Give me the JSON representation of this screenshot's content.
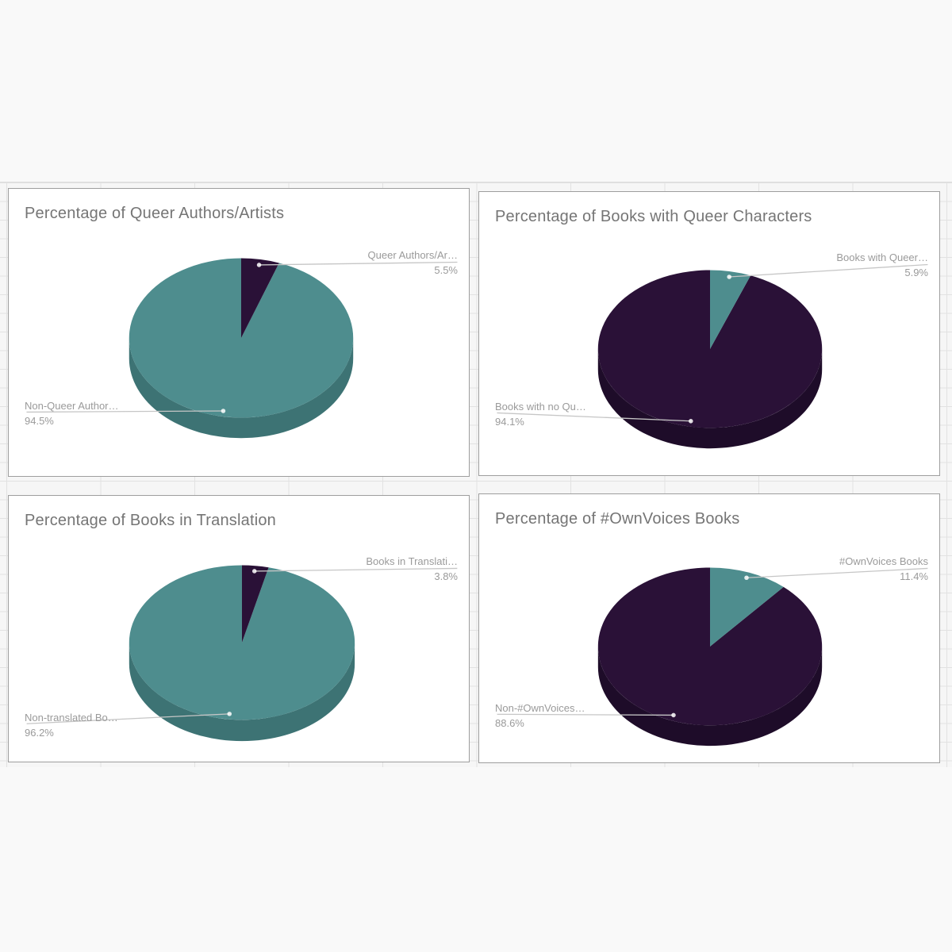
{
  "page": {
    "background": "#f9f9f9"
  },
  "colors": {
    "teal": "#4e8d8e",
    "teal_side": "#3d7374",
    "purple": "#2a1137",
    "purple_side": "#1e0c29",
    "title_text": "#757575",
    "label_text": "#9a9a9a",
    "leader_line": "#c6c6c6",
    "card_border": "#9e9e9e",
    "card_background": "#ffffff",
    "grid_line": "#e2e2e2"
  },
  "chart_data": [
    {
      "type": "pie",
      "effect": "3d",
      "title": "Percentage of Queer Authors/Artists",
      "legend_position": "labeled",
      "slices": [
        {
          "label": "Queer Authors/Ar…",
          "pct_label": "5.5%",
          "value": 5.5,
          "color": "purple",
          "label_side": "right"
        },
        {
          "label": "Non-Queer Author…",
          "pct_label": "94.5%",
          "value": 94.5,
          "color": "teal",
          "label_side": "left"
        }
      ]
    },
    {
      "type": "pie",
      "effect": "3d",
      "title": "Percentage of Books with Queer Characters",
      "legend_position": "labeled",
      "slices": [
        {
          "label": "Books with Queer…",
          "pct_label": "5.9%",
          "value": 5.9,
          "color": "teal",
          "label_side": "right"
        },
        {
          "label": "Books with no Qu…",
          "pct_label": "94.1%",
          "value": 94.1,
          "color": "purple",
          "label_side": "left"
        }
      ]
    },
    {
      "type": "pie",
      "effect": "3d",
      "title": "Percentage of Books in Translation",
      "legend_position": "labeled",
      "slices": [
        {
          "label": "Books in Translati…",
          "pct_label": "3.8%",
          "value": 3.8,
          "color": "purple",
          "label_side": "right"
        },
        {
          "label": "Non-translated Bo…",
          "pct_label": "96.2%",
          "value": 96.2,
          "color": "teal",
          "label_side": "left"
        }
      ]
    },
    {
      "type": "pie",
      "effect": "3d",
      "title": "Percentage of #OwnVoices Books",
      "legend_position": "labeled",
      "slices": [
        {
          "label": "#OwnVoices Books",
          "pct_label": "11.4%",
          "value": 11.4,
          "color": "teal",
          "label_side": "right"
        },
        {
          "label": "Non-#OwnVoices…",
          "pct_label": "88.6%",
          "value": 88.6,
          "color": "purple",
          "label_side": "left"
        }
      ]
    }
  ]
}
